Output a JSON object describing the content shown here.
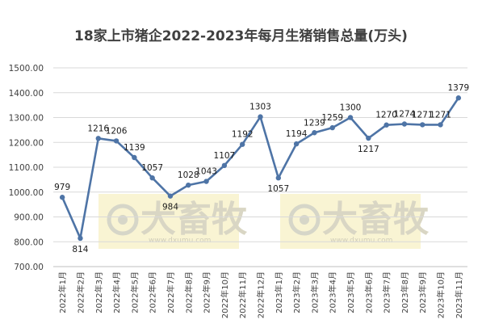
{
  "chart_data": {
    "type": "line",
    "title": "18家上市猪企2022-2023年每月生猪销售总量(万头)",
    "categories": [
      "2022年1月",
      "2022年2月",
      "2022年3月",
      "2022年4月",
      "2022年5月",
      "2022年6月",
      "2022年7月",
      "2022年8月",
      "2022年9月",
      "2022年10月",
      "2022年11月",
      "2022年12月",
      "2023年1月",
      "2023年2月",
      "2023年3月",
      "2023年4月",
      "2023年5月",
      "2023年6月",
      "2023年7月",
      "2023年8月",
      "2023年9月",
      "2023年10月",
      "2023年11月"
    ],
    "values": [
      979,
      814,
      1216,
      1206,
      1139,
      1057,
      984,
      1028,
      1043,
      1107,
      1192,
      1303,
      1057,
      1194,
      1239,
      1259,
      1300,
      1217,
      1270,
      1274,
      1271,
      1271,
      1379
    ],
    "ylim": [
      700,
      1500
    ],
    "yticks": [
      "700.00",
      "800.00",
      "900.00",
      "1000.00",
      "1100.00",
      "1200.00",
      "1300.00",
      "1400.00",
      "1500.00"
    ],
    "grid": true,
    "line_color": "#4e74a6"
  },
  "watermark": {
    "brand": "大畜牧",
    "site": "www.dxumu.com"
  }
}
